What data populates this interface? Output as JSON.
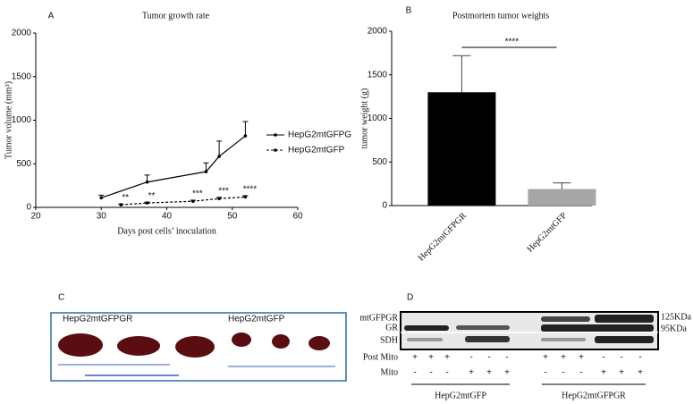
{
  "chart_data": [
    {
      "type": "line",
      "panel": "A",
      "title": "Tumor growth rate",
      "x_label": "Days post cells’ inoculation",
      "y_label": "Tumor volume (mm³)",
      "xlim": [
        20,
        60
      ],
      "xticks": [
        20,
        30,
        40,
        50,
        60
      ],
      "ylim": [
        0,
        2000
      ],
      "yticks": [
        0,
        500,
        1000,
        1500,
        2000
      ],
      "series": [
        {
          "name": "HepG2mtGFPG",
          "color": "#000000",
          "line_style": "solid",
          "x": [
            30,
            37,
            46,
            48,
            52
          ],
          "values": [
            110,
            290,
            410,
            585,
            820
          ],
          "errors": [
            30,
            80,
            100,
            175,
            165
          ]
        },
        {
          "name": "HepG2mtGFP",
          "color": "#000000",
          "line_style": "dashed",
          "x": [
            33,
            37,
            44,
            48,
            52
          ],
          "values": [
            30,
            50,
            70,
            100,
            120
          ],
          "errors": [
            8,
            10,
            12,
            15,
            15
          ]
        }
      ],
      "annotations": [
        "**",
        "**",
        "***",
        "***",
        "****"
      ],
      "legend": "right"
    },
    {
      "type": "bar",
      "panel": "B",
      "title": "Postmortem tumor weights",
      "y_label": "tumor weight (g)",
      "categories": [
        "HepG2mtGFPGR",
        "HepG2mtGFP"
      ],
      "values": [
        1300,
        190
      ],
      "errors": [
        420,
        70
      ],
      "colors": [
        "#000000",
        "#a6a6a6"
      ],
      "ylim": [
        0,
        2000
      ],
      "yticks": [
        0,
        500,
        1000,
        1500,
        2000
      ],
      "significance": "****"
    }
  ],
  "photo": {
    "panel": "C",
    "labels": [
      "HepG2mtGFPGR",
      "HepG2mtGFP"
    ]
  },
  "blot": {
    "panel": "D",
    "bands": [
      "mtGFPGR",
      "GR",
      "SDH"
    ],
    "sizes": [
      "125KDa",
      "95KDa"
    ],
    "rows": [
      {
        "label": "Post Mito",
        "signs": [
          "+",
          "+",
          "+",
          "-",
          "-",
          "-",
          "+",
          "+",
          "+",
          "-",
          "-",
          "-"
        ]
      },
      {
        "label": "Mito",
        "signs": [
          "-",
          "-",
          "-",
          "+",
          "+",
          "+",
          "-",
          "-",
          "-",
          "+",
          "+",
          "+"
        ]
      }
    ],
    "groups": [
      "HepG2mtGFP",
      "HepG2mtGFPGR"
    ]
  }
}
